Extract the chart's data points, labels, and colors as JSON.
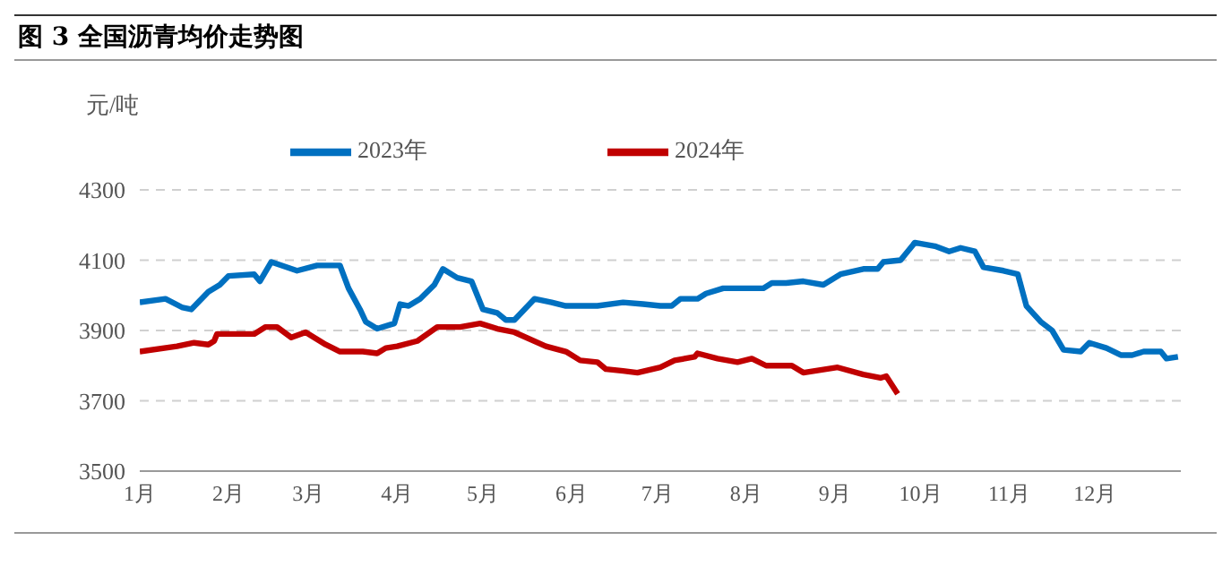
{
  "chart_data": {
    "type": "line",
    "title": "图 3  全国沥青均价走势图",
    "ylabel": "元/吨",
    "xlim": [
      "--01-01",
      "--12-31"
    ],
    "xticks": [
      {
        "value": "--01-01",
        "label": "1月"
      },
      {
        "value": "--02-01",
        "label": "2月"
      },
      {
        "value": "--03-01",
        "label": "3月"
      },
      {
        "value": "--04-01",
        "label": "4月"
      },
      {
        "value": "--05-01",
        "label": "5月"
      },
      {
        "value": "--06-01",
        "label": "6月"
      },
      {
        "value": "--07-01",
        "label": "7月"
      },
      {
        "value": "--08-01",
        "label": "8月"
      },
      {
        "value": "--09-01",
        "label": "9月"
      },
      {
        "value": "--10-01",
        "label": "10月"
      },
      {
        "value": "--11-01",
        "label": "11月"
      },
      {
        "value": "--12-01",
        "label": "12月"
      }
    ],
    "ylim": [
      3500,
      4300
    ],
    "yticks": [
      3500,
      3700,
      3900,
      4100,
      4300
    ],
    "grid": "y",
    "legend": "top",
    "marker": "none",
    "line_style": "solid",
    "series": [
      {
        "name": "2023年",
        "color": "#0070c0",
        "x": [
          "--01-01",
          "--01-10",
          "--01-16",
          "--01-19",
          "--01-25",
          "--01-29",
          "--02-01",
          "--02-10",
          "--02-12",
          "--02-16",
          "--02-25",
          "--03-04",
          "--03-12",
          "--03-15",
          "--03-19",
          "--03-21",
          "--03-25",
          "--03-31",
          "--04-02",
          "--04-05",
          "--04-09",
          "--04-14",
          "--04-17",
          "--04-22",
          "--04-27",
          "--05-01",
          "--05-06",
          "--05-09",
          "--05-12",
          "--05-19",
          "--05-25",
          "--05-30",
          "--06-10",
          "--06-19",
          "--06-26",
          "--07-02",
          "--07-06",
          "--07-09",
          "--07-15",
          "--07-18",
          "--07-24",
          "--08-07",
          "--08-10",
          "--08-15",
          "--08-21",
          "--08-28",
          "--09-03",
          "--09-11",
          "--09-16",
          "--09-18",
          "--09-24",
          "--09-29",
          "--10-06",
          "--10-11",
          "--10-15",
          "--10-20",
          "--10-23",
          "--10-30",
          "--11-04",
          "--11-07",
          "--11-12",
          "--11-16",
          "--11-20",
          "--11-26",
          "--11-29",
          "--12-05",
          "--12-10",
          "--12-14",
          "--12-18",
          "--12-24",
          "--12-26",
          "--12-30"
        ],
        "values": [
          3980,
          3990,
          3965,
          3960,
          4010,
          4030,
          4055,
          4060,
          4040,
          4095,
          4070,
          4085,
          4085,
          4020,
          3960,
          3925,
          3905,
          3920,
          3975,
          3970,
          3990,
          4030,
          4075,
          4050,
          4040,
          3960,
          3950,
          3930,
          3930,
          3990,
          3980,
          3970,
          3970,
          3980,
          3975,
          3970,
          3970,
          3990,
          3990,
          4005,
          4020,
          4020,
          4035,
          4035,
          4040,
          4030,
          4060,
          4075,
          4075,
          4095,
          4100,
          4150,
          4140,
          4125,
          4135,
          4125,
          4080,
          4070,
          4060,
          3970,
          3925,
          3900,
          3845,
          3840,
          3865,
          3850,
          3830,
          3830,
          3840,
          3840,
          3820,
          3825
        ]
      },
      {
        "name": "2024年",
        "color": "#c00000",
        "x": [
          "--01-01",
          "--01-14",
          "--01-20",
          "--01-25",
          "--01-27",
          "--01-28",
          "--02-10",
          "--02-14",
          "--02-18",
          "--02-23",
          "--02-28",
          "--03-07",
          "--03-12",
          "--03-20",
          "--03-25",
          "--03-28",
          "--04-01",
          "--04-08",
          "--04-15",
          "--04-23",
          "--04-30",
          "--05-06",
          "--05-12",
          "--05-23",
          "--05-30",
          "--06-04",
          "--06-10",
          "--06-13",
          "--06-19",
          "--06-24",
          "--07-02",
          "--07-07",
          "--07-14",
          "--07-15",
          "--07-22",
          "--07-29",
          "--08-03",
          "--08-08",
          "--08-17",
          "--08-21",
          "--09-02",
          "--09-11",
          "--09-17",
          "--09-19",
          "--09-23"
        ],
        "values": [
          3840,
          3855,
          3865,
          3860,
          3870,
          3890,
          3890,
          3910,
          3910,
          3880,
          3895,
          3860,
          3840,
          3840,
          3835,
          3850,
          3855,
          3870,
          3910,
          3910,
          3920,
          3905,
          3895,
          3855,
          3840,
          3815,
          3810,
          3790,
          3785,
          3780,
          3795,
          3815,
          3825,
          3835,
          3820,
          3810,
          3820,
          3800,
          3800,
          3780,
          3795,
          3775,
          3765,
          3770,
          3720
        ]
      }
    ]
  }
}
